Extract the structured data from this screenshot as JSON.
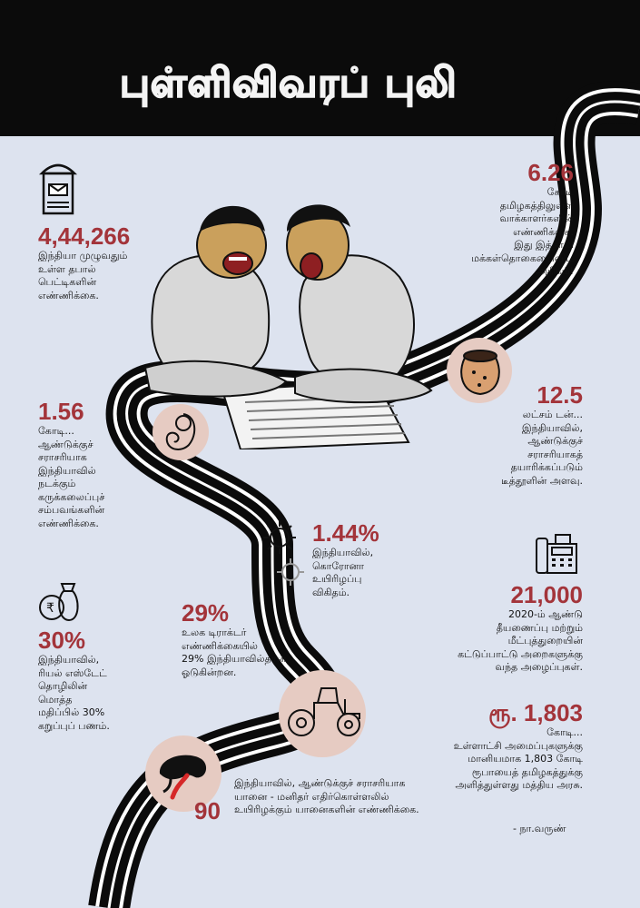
{
  "title": "புள்ளிவிவரப் புலி",
  "colors": {
    "accent": "#a3343a",
    "background": "#dde3ef",
    "header": "#0b0b0b",
    "icon_circle": "#e6cbc2"
  },
  "stats": {
    "post_boxes": {
      "value": "4,44,266",
      "text": "இந்தியா முழுவதும்\nஉள்ள தபால்\nபெட்டிகளின்\nஎண்ணிக்கை.",
      "icon": "post-box-icon"
    },
    "voters": {
      "value": "6.26",
      "text": "கோடி\nதமிழகத்திலுள்ள\nவாக்காளர்களின்\nஎண்ணிக்கை.\nஇது இத்தாலி\nமக்கள்தொகையைவிட\nஅதிகம்!"
    },
    "abortions": {
      "value": "1.56",
      "text": "கோடி...\nஆண்டுக்குச்\nசராசரியாக\nஇந்தியாவில்\nநடக்கும்\nகருக்கலைப்புச்\nசம்பவங்களின்\nஎண்ணிக்கை.",
      "icon": "fetus-icon"
    },
    "tea": {
      "value": "12.5",
      "text": "லட்சம் டன்...\nஇந்தியாவில்,\nஆண்டுக்குச்\nசராசரியாகத்\nதயாரிக்கப்படும்\nடீத்தூளின் அளவு.",
      "icon": "tea-sack-icon"
    },
    "covid": {
      "value": "1.44%",
      "text": "இந்தியாவில்,\nகொரோனா\nஉயிரிழப்பு\nவிகிதம்.",
      "icon": "virus-icon"
    },
    "fire_calls": {
      "value": "21,000",
      "text": "2020-ம் ஆண்டு\nதீயணைப்பு மற்றும்\nமீட்புத்துறையின்\nகட்டுப்பாட்டு அறைகளுக்கு\nவந்த அழைப்புகள்.",
      "icon": "telephone-icon"
    },
    "tractors": {
      "value": "29%",
      "text": "உலக டிராக்டர்\nஎண்ணிக்கையில்\n29% இந்தியாவில்தான்\nஓடுகின்றன.",
      "icon": "tractor-icon"
    },
    "black_money": {
      "value": "30%",
      "text": "இந்தியாவில்,\nரியல் எஸ்டேட்\nதொழிலின்\nமொத்த\nமதிப்பில் 30%\nகறுப்புப் பணம்.",
      "icon": "money-bag-icon",
      "currency": "₹"
    },
    "grants": {
      "value": "ரூ. 1,803",
      "text": "கோடி...\nஉள்ளாட்சி அமைப்புகளுக்கு\nமானியமாக 1,803 கோடி\nரூபாயைத் தமிழகத்துக்கு\nஅளித்துள்ளது மத்திய அரசு."
    },
    "elephants": {
      "value": "90",
      "text": "இந்தியாவில், ஆண்டுக்குச் சராசரியாக\nயானை - மனிதர் எதிர்கொள்ளலில்\nஉயிரிழக்கும் யானைகளின் எண்ணிக்கை.",
      "icon": "elephant-icon"
    }
  },
  "credit": "- நா.வருண்"
}
